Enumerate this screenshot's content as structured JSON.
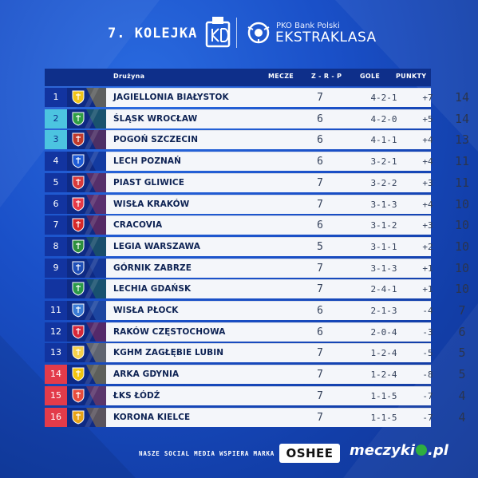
{
  "header": {
    "round": "7. KOLEJKA",
    "league_sponsor": "PKO Bank Polski",
    "league_name": "EKSTRAKLASA"
  },
  "columns": {
    "team": "Drużyna",
    "matches": "MECZE",
    "wdl": "Z - R - P",
    "goals": "GOLE",
    "points": "PUNKTY"
  },
  "rows": [
    {
      "pos": "1",
      "team": "JAGIELLONIA BIAŁYSTOK",
      "m": "7",
      "wdl": "4-2-1",
      "gd": "+7",
      "pts": "14",
      "zone": "leader",
      "crest": "#f0c419"
    },
    {
      "pos": "2",
      "team": "ŚLĄSK WROCŁAW",
      "m": "6",
      "wdl": "4-2-0",
      "gd": "+5",
      "pts": "14",
      "zone": "cl",
      "crest": "#2f9e44"
    },
    {
      "pos": "3",
      "team": "POGOŃ SZCZECIN",
      "m": "6",
      "wdl": "4-1-1",
      "gd": "+4",
      "pts": "13",
      "zone": "cl",
      "crest": "#c0392b"
    },
    {
      "pos": "4",
      "team": "LECH POZNAŃ",
      "m": "6",
      "wdl": "3-2-1",
      "gd": "+4",
      "pts": "11",
      "zone": "",
      "crest": "#1e5bd6"
    },
    {
      "pos": "5",
      "team": "PIAST GLIWICE",
      "m": "7",
      "wdl": "3-2-2",
      "gd": "+3",
      "pts": "11",
      "zone": "",
      "crest": "#d93a3a"
    },
    {
      "pos": "6",
      "team": "WISŁA KRAKÓW",
      "m": "7",
      "wdl": "3-1-3",
      "gd": "+4",
      "pts": "10",
      "zone": "",
      "crest": "#e63946"
    },
    {
      "pos": "7",
      "team": "CRACOVIA",
      "m": "6",
      "wdl": "3-1-2",
      "gd": "+3",
      "pts": "10",
      "zone": "",
      "crest": "#d62828"
    },
    {
      "pos": "8",
      "team": "LEGIA WARSZAWA",
      "m": "5",
      "wdl": "3-1-1",
      "gd": "+2",
      "pts": "10",
      "zone": "",
      "crest": "#2d8f3e"
    },
    {
      "pos": "9",
      "team": "GÓRNIK ZABRZE",
      "m": "7",
      "wdl": "3-1-3",
      "gd": "+1",
      "pts": "10",
      "zone": "",
      "crest": "#1f4fb8"
    },
    {
      "pos": "",
      "team": "LECHIA GDAŃSK",
      "m": "7",
      "wdl": "2-4-1",
      "gd": "+1",
      "pts": "10",
      "zone": "",
      "crest": "#2b9a48"
    },
    {
      "pos": "11",
      "team": "WISŁA PŁOCK",
      "m": "6",
      "wdl": "2-1-3",
      "gd": "-4",
      "pts": "7",
      "zone": "",
      "crest": "#3a7bd5"
    },
    {
      "pos": "12",
      "team": "RAKÓW CZĘSTOCHOWA",
      "m": "6",
      "wdl": "2-0-4",
      "gd": "-3",
      "pts": "6",
      "zone": "",
      "crest": "#d62839"
    },
    {
      "pos": "13",
      "team": "KGHM ZAGŁĘBIE LUBIN",
      "m": "7",
      "wdl": "1-2-4",
      "gd": "-5",
      "pts": "5",
      "zone": "",
      "crest": "#f5d14a"
    },
    {
      "pos": "14",
      "team": "ARKA GDYNIA",
      "m": "7",
      "wdl": "1-2-4",
      "gd": "-8",
      "pts": "5",
      "zone": "rel",
      "crest": "#f1c40f"
    },
    {
      "pos": "15",
      "team": "ŁKS ŁÓDŹ",
      "m": "7",
      "wdl": "1-1-5",
      "gd": "-7",
      "pts": "4",
      "zone": "rel",
      "crest": "#e74c3c"
    },
    {
      "pos": "16",
      "team": "KORONA KIELCE",
      "m": "7",
      "wdl": "1-1-5",
      "gd": "-7",
      "pts": "4",
      "zone": "rel",
      "crest": "#e8a317"
    }
  ],
  "footer": {
    "social_text": "NASZE SOCIAL MEDIA WSPIERA MARKA",
    "sponsor": "OSHEE",
    "site_a": "meczyki",
    "site_b": ".pl"
  }
}
